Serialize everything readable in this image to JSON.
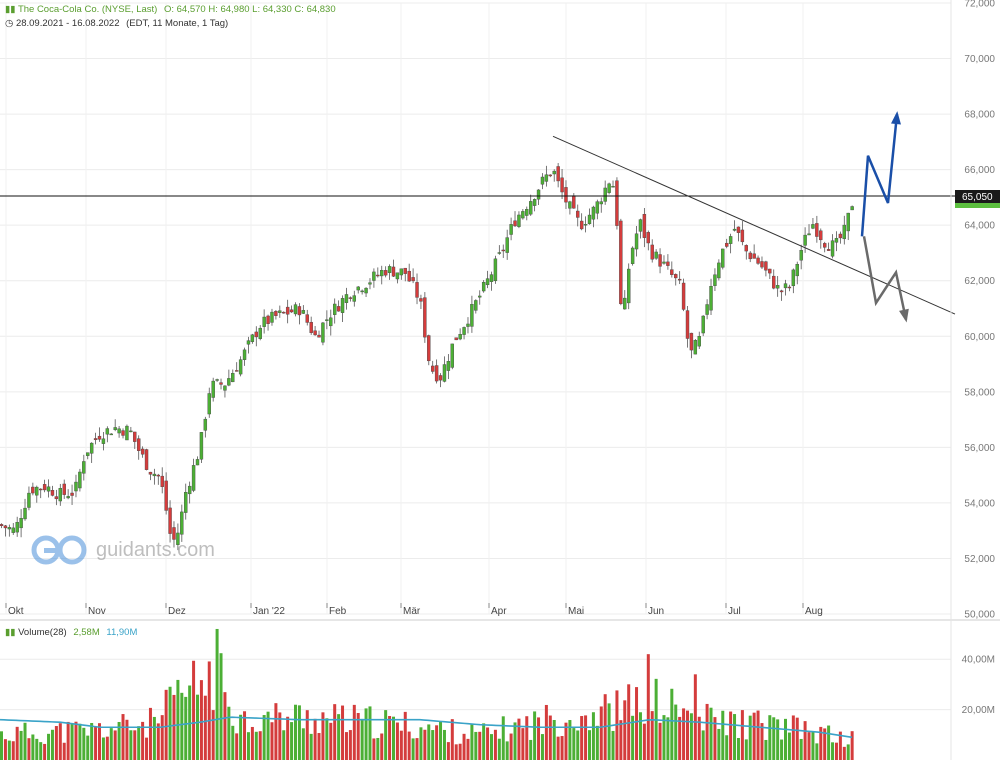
{
  "header": {
    "company": "The Coca-Cola Co. (NYSE, Last)",
    "ohlc": "O: 64,570  H: 64,980  L: 64,330  C: 64,830",
    "range": "28.09.2021 - 16.08.2022",
    "meta": "(EDT, 11 Monate, 1 Tag)"
  },
  "watermark": "guidants.com",
  "volume_panel": {
    "label": "Volume(28)",
    "value1": "2,58M",
    "value2": "11,90M"
  },
  "current_price_label": "65,050",
  "colors": {
    "up": "#4caf35",
    "down": "#d43c3c",
    "ma": "#3aa3c8",
    "blue_arrow": "#1a4fa8",
    "gray_arrow": "#6a6a6a"
  },
  "chart_data": {
    "type": "candlestick",
    "price_axis": {
      "ticks": [
        "72,000",
        "70,000",
        "68,000",
        "66,000",
        "64,000",
        "62,000",
        "60,000",
        "58,000",
        "56,000",
        "54,000",
        "52,000",
        "50,000"
      ],
      "ylim": [
        50,
        72
      ]
    },
    "volume_axis": {
      "ticks": [
        "40,00M",
        "20,00M"
      ]
    },
    "x_ticks": [
      "Okt",
      "Nov",
      "Dez",
      "Jan '22",
      "Feb",
      "Mär",
      "Apr",
      "Mai",
      "Jun",
      "Jul",
      "Aug"
    ],
    "horizontal_line": 65.05,
    "trendline": [
      [
        "2022-04-21",
        67.2
      ],
      [
        "2022-08-31",
        60.8
      ]
    ],
    "close_path": [
      [
        0,
        53.2
      ],
      [
        15,
        53.0
      ],
      [
        30,
        54.5
      ],
      [
        45,
        54.6
      ],
      [
        60,
        54.3
      ],
      [
        75,
        54.4
      ],
      [
        85,
        55.8
      ],
      [
        100,
        56.5
      ],
      [
        115,
        56.7
      ],
      [
        130,
        56.6
      ],
      [
        140,
        55.8
      ],
      [
        150,
        55.2
      ],
      [
        160,
        54.9
      ],
      [
        165,
        54.0
      ],
      [
        170,
        52.9
      ],
      [
        175,
        52.6
      ],
      [
        180,
        53.2
      ],
      [
        185,
        54.3
      ],
      [
        200,
        56.0
      ],
      [
        210,
        58.2
      ],
      [
        225,
        58.3
      ],
      [
        240,
        59.1
      ],
      [
        260,
        60.4
      ],
      [
        275,
        60.7
      ],
      [
        300,
        61.0
      ],
      [
        315,
        60.0
      ],
      [
        330,
        60.8
      ],
      [
        350,
        61.6
      ],
      [
        365,
        61.9
      ],
      [
        385,
        62.4
      ],
      [
        405,
        62.3
      ],
      [
        420,
        61.3
      ],
      [
        430,
        58.9
      ],
      [
        440,
        58.5
      ],
      [
        455,
        59.9
      ],
      [
        470,
        60.8
      ],
      [
        485,
        61.8
      ],
      [
        500,
        62.9
      ],
      [
        515,
        64.2
      ],
      [
        530,
        64.9
      ],
      [
        545,
        65.7
      ],
      [
        553,
        66.0
      ],
      [
        560,
        65.3
      ],
      [
        570,
        64.6
      ],
      [
        580,
        64.0
      ],
      [
        595,
        64.6
      ],
      [
        605,
        65.3
      ],
      [
        612,
        65.8
      ],
      [
        617,
        64.1
      ],
      [
        622,
        60.2
      ],
      [
        630,
        62.9
      ],
      [
        640,
        64.1
      ],
      [
        650,
        63.1
      ],
      [
        665,
        62.5
      ],
      [
        680,
        61.8
      ],
      [
        690,
        59.3
      ],
      [
        700,
        59.9
      ],
      [
        710,
        61.8
      ],
      [
        720,
        62.9
      ],
      [
        735,
        63.9
      ],
      [
        745,
        63.1
      ],
      [
        760,
        62.6
      ],
      [
        770,
        62.1
      ],
      [
        780,
        61.6
      ],
      [
        790,
        61.8
      ],
      [
        800,
        63.0
      ],
      [
        812,
        64.1
      ],
      [
        825,
        63.4
      ],
      [
        835,
        63.2
      ],
      [
        845,
        63.8
      ],
      [
        852,
        64.8
      ]
    ],
    "volume_profile": [
      [
        0,
        10
      ],
      [
        100,
        12
      ],
      [
        160,
        15
      ],
      [
        170,
        22
      ],
      [
        218,
        35
      ],
      [
        240,
        16
      ],
      [
        300,
        17
      ],
      [
        400,
        14
      ],
      [
        480,
        10
      ],
      [
        550,
        16
      ],
      [
        620,
        20
      ],
      [
        648,
        24
      ],
      [
        700,
        16
      ],
      [
        760,
        14
      ],
      [
        800,
        12
      ],
      [
        852,
        8
      ]
    ],
    "ma_path": [
      [
        0,
        16
      ],
      [
        60,
        15
      ],
      [
        100,
        13
      ],
      [
        160,
        13
      ],
      [
        200,
        15
      ],
      [
        230,
        17
      ],
      [
        300,
        16
      ],
      [
        360,
        16
      ],
      [
        420,
        16
      ],
      [
        480,
        14
      ],
      [
        540,
        13
      ],
      [
        600,
        13
      ],
      [
        650,
        16
      ],
      [
        700,
        15
      ],
      [
        760,
        13
      ],
      [
        820,
        11
      ],
      [
        852,
        9
      ]
    ],
    "annotations": [
      {
        "type": "arrow",
        "color": "blue",
        "points": [
          [
            862,
            63.6
          ],
          [
            868,
            66.5
          ],
          [
            888,
            64.8
          ],
          [
            897,
            68.0
          ]
        ]
      },
      {
        "type": "arrow",
        "color": "gray",
        "points": [
          [
            864,
            63.6
          ],
          [
            876,
            61.2
          ],
          [
            896,
            62.3
          ],
          [
            906,
            60.6
          ]
        ]
      }
    ]
  }
}
